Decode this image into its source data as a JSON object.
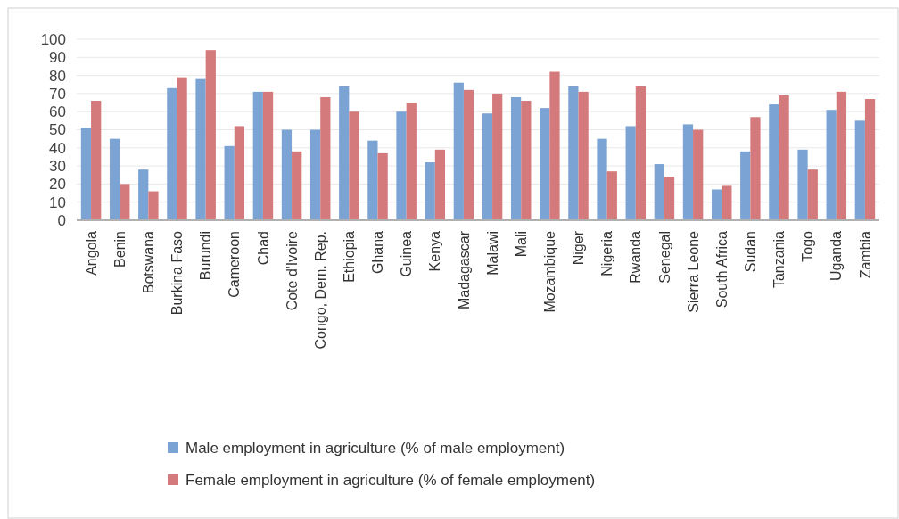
{
  "chart_data": {
    "type": "bar",
    "categories": [
      "Angola",
      "Benin",
      "Botswana",
      "Burkina Faso",
      "Burundi",
      "Cameroon",
      "Chad",
      "Cote d'Ivoire",
      "Congo, Dem. Rep.",
      "Ethiopia",
      "Ghana",
      "Guinea",
      "Kenya",
      "Madagascar",
      "Malawi",
      "Mali",
      "Mozambique",
      "Niger",
      "Nigeria",
      "Rwanda",
      "Senegal",
      "Sierra Leone",
      "South Africa",
      "Sudan",
      "Tanzania",
      "Togo",
      "Uganda",
      "Zambia"
    ],
    "series": [
      {
        "name": "Male employment in agriculture (% of male employment)",
        "color": "#7ba3d4",
        "values": [
          51,
          45,
          28,
          73,
          78,
          41,
          71,
          50,
          50,
          74,
          44,
          60,
          32,
          76,
          59,
          68,
          62,
          74,
          45,
          52,
          31,
          53,
          17,
          38,
          64,
          39,
          61,
          55
        ]
      },
      {
        "name": "Female employment in agriculture (% of female employment)",
        "color": "#d47a7c",
        "values": [
          66,
          20,
          16,
          79,
          94,
          52,
          71,
          38,
          68,
          60,
          37,
          65,
          39,
          72,
          70,
          66,
          82,
          71,
          27,
          74,
          24,
          50,
          19,
          57,
          69,
          28,
          71,
          67
        ]
      }
    ],
    "ylim": [
      0,
      100
    ],
    "yticks": [
      0,
      10,
      20,
      30,
      40,
      50,
      60,
      70,
      80,
      90,
      100
    ],
    "grid": "y",
    "legend": "bottom"
  }
}
